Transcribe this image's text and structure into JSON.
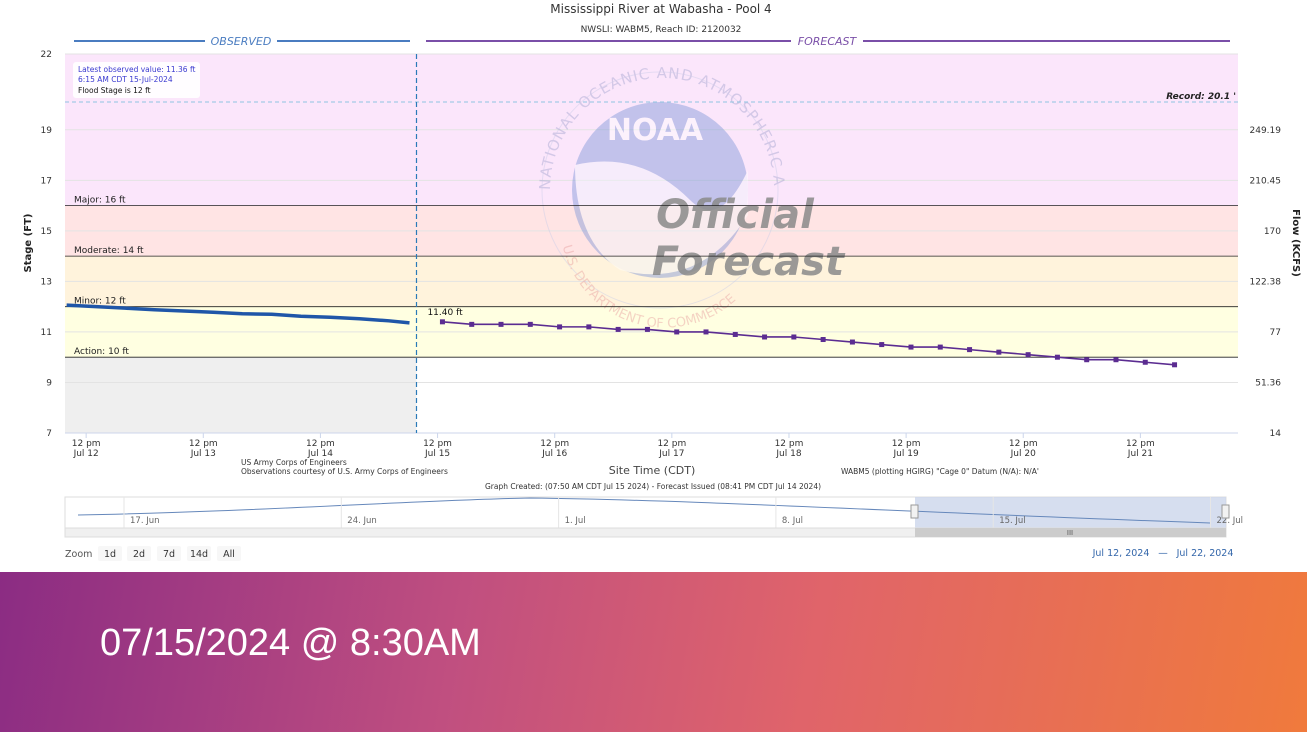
{
  "chart_data": {
    "type": "line",
    "title": "Mississippi River at Wabasha - Pool 4",
    "subtitle": "NWSLI: WABM5, Reach ID: 2120032",
    "y_label": "Stage (FT)",
    "y2_label": "Flow (KCFS)",
    "x_label": "Site Time (CDT)",
    "xlim": [
      "Jul 12 07:40",
      "Jul 22 08:00"
    ],
    "xticks": [
      {
        "value": "Jul 12 12:00",
        "label": [
          "12 pm",
          "Jul 12"
        ]
      },
      {
        "value": "Jul 13 12:00",
        "label": [
          "12 pm",
          "Jul 13"
        ]
      },
      {
        "value": "Jul 14 12:00",
        "label": [
          "12 pm",
          "Jul 14"
        ]
      },
      {
        "value": "Jul 15 12:00",
        "label": [
          "12 pm",
          "Jul 15"
        ]
      },
      {
        "value": "Jul 16 12:00",
        "label": [
          "12 pm",
          "Jul 16"
        ]
      },
      {
        "value": "Jul 17 12:00",
        "label": [
          "12 pm",
          "Jul 17"
        ]
      },
      {
        "value": "Jul 18 12:00",
        "label": [
          "12 pm",
          "Jul 18"
        ]
      },
      {
        "value": "Jul 19 12:00",
        "label": [
          "12 pm",
          "Jul 19"
        ]
      },
      {
        "value": "Jul 20 12:00",
        "label": [
          "12 pm",
          "Jul 20"
        ]
      },
      {
        "value": "Jul 21 12:00",
        "label": [
          "12 pm",
          "Jul 21"
        ]
      }
    ],
    "ylim": [
      7,
      22
    ],
    "yticks": [
      7,
      9,
      11,
      13,
      15,
      17,
      19,
      22
    ],
    "y2ticks": [
      14,
      51.36,
      77,
      122.38,
      170,
      210.45,
      249.19
    ],
    "grid": true,
    "series": [
      {
        "name": "OBSERVED",
        "color": "#1f56a8",
        "x": [
          "Jul 12 08:00",
          "Jul 12 14:00",
          "Jul 12 20:00",
          "Jul 13 02:00",
          "Jul 13 08:00",
          "Jul 13 14:00",
          "Jul 13 20:00",
          "Jul 14 02:00",
          "Jul 14 08:00",
          "Jul 14 14:00",
          "Jul 14 20:00",
          "Jul 15 02:00",
          "Jul 15 06:15"
        ],
        "values": [
          12.06,
          12.0,
          11.94,
          11.88,
          11.83,
          11.78,
          11.72,
          11.7,
          11.62,
          11.58,
          11.52,
          11.44,
          11.36
        ]
      },
      {
        "name": "FORECAST",
        "color": "#5b2c91",
        "x": [
          "Jul 15 13:00",
          "Jul 15 19:00",
          "Jul 16 01:00",
          "Jul 16 07:00",
          "Jul 16 13:00",
          "Jul 16 19:00",
          "Jul 17 01:00",
          "Jul 17 07:00",
          "Jul 17 13:00",
          "Jul 17 19:00",
          "Jul 18 01:00",
          "Jul 18 07:00",
          "Jul 18 13:00",
          "Jul 18 19:00",
          "Jul 19 01:00",
          "Jul 19 07:00",
          "Jul 19 13:00",
          "Jul 19 19:00",
          "Jul 20 01:00",
          "Jul 20 07:00",
          "Jul 20 13:00",
          "Jul 20 19:00",
          "Jul 21 01:00",
          "Jul 21 07:00",
          "Jul 21 13:00",
          "Jul 21 19:00"
        ],
        "values": [
          11.4,
          11.3,
          11.3,
          11.3,
          11.2,
          11.2,
          11.1,
          11.1,
          11.0,
          11.0,
          10.9,
          10.8,
          10.8,
          10.7,
          10.6,
          10.5,
          10.4,
          10.4,
          10.3,
          10.2,
          10.1,
          10.0,
          9.9,
          9.9,
          9.8,
          9.7
        ]
      }
    ],
    "point_label": "11.40 ft",
    "thresholds": [
      {
        "label": "Action: 10 ft",
        "value": 10,
        "color": "#ffffe1"
      },
      {
        "label": "Minor: 12 ft",
        "value": 12,
        "color": "#fff3dc"
      },
      {
        "label": "Moderate: 14 ft",
        "value": 14,
        "color": "#ffe4e4"
      },
      {
        "label": "Major: 16 ft",
        "value": 16,
        "color": "#fbe6fb"
      }
    ],
    "record": {
      "label": "Record: 20.1 '",
      "value": 20.1
    },
    "info": [
      "Latest observed value: 11.36 ft",
      "6:15 AM CDT 15-Jul-2024",
      "Flood Stage is 12 ft"
    ],
    "credits": [
      "US Army Corps of Engineers",
      "Observations courtesy of U.S. Army Corps of Engineers",
      "WABM5 (plotting HGIRG) \"Cage 0\" Datum (N/A): N/A'",
      "Graph Created: (07:50 AM CDT Jul 15 2024) - Forecast Issued (08:41 PM CDT Jul 14 2024)"
    ],
    "watermark": {
      "ring_top": "NATIONAL OCEANIC AND ATMOSPHERIC ADMINISTRATION",
      "ring_bottom": "U.S. DEPARTMENT OF COMMERCE",
      "logo": "NOAA",
      "line1": "Official",
      "line2": "Forecast"
    }
  },
  "navigator": {
    "ticks": [
      "17. Jun",
      "24. Jun",
      "1. Jul",
      "8. Jul",
      "15. Jul",
      "22. Jul"
    ],
    "handle": "III"
  },
  "range_selector": {
    "label": "Zoom",
    "buttons": [
      "1d",
      "2d",
      "7d",
      "14d",
      "All"
    ]
  },
  "date_range": {
    "from": "Jul 12, 2024",
    "separator": "—",
    "to": "Jul 22, 2024"
  },
  "banner": {
    "text": "07/15/2024 @ 8:30AM"
  }
}
